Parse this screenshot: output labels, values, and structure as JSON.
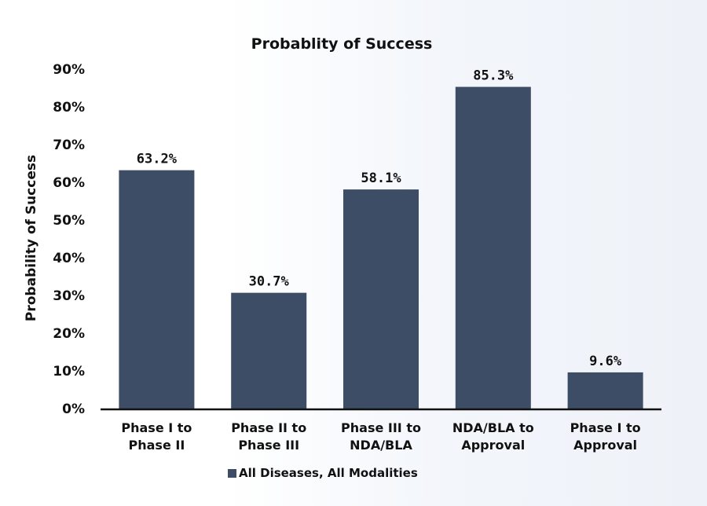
{
  "chart_data": {
    "type": "bar",
    "title": "Probablity of Success",
    "ylabel": "Probability of Success",
    "xlabel": "",
    "ylim": [
      0,
      90
    ],
    "yticks": [
      0,
      10,
      20,
      30,
      40,
      50,
      60,
      70,
      80,
      90
    ],
    "ytick_labels": [
      "0%",
      "10%",
      "20%",
      "30%",
      "40%",
      "50%",
      "60%",
      "70%",
      "80%",
      "90%"
    ],
    "categories": [
      [
        "Phase I to",
        "Phase II"
      ],
      [
        "Phase II to",
        "Phase III"
      ],
      [
        "Phase III to",
        "NDA/BLA"
      ],
      [
        "NDA/BLA to",
        "Approval"
      ],
      [
        "Phase I to",
        "Approval"
      ]
    ],
    "series": [
      {
        "name": "All Diseases, All Modalities",
        "values": [
          63.2,
          30.7,
          58.1,
          85.3,
          9.6
        ],
        "labels": [
          "63.2%",
          "30.7%",
          "58.1%",
          "85.3%",
          "9.6%"
        ]
      }
    ],
    "grid": false,
    "legend_position": "bottom",
    "colors": {
      "bar": "#3d4d66",
      "axis": "#111111"
    }
  }
}
